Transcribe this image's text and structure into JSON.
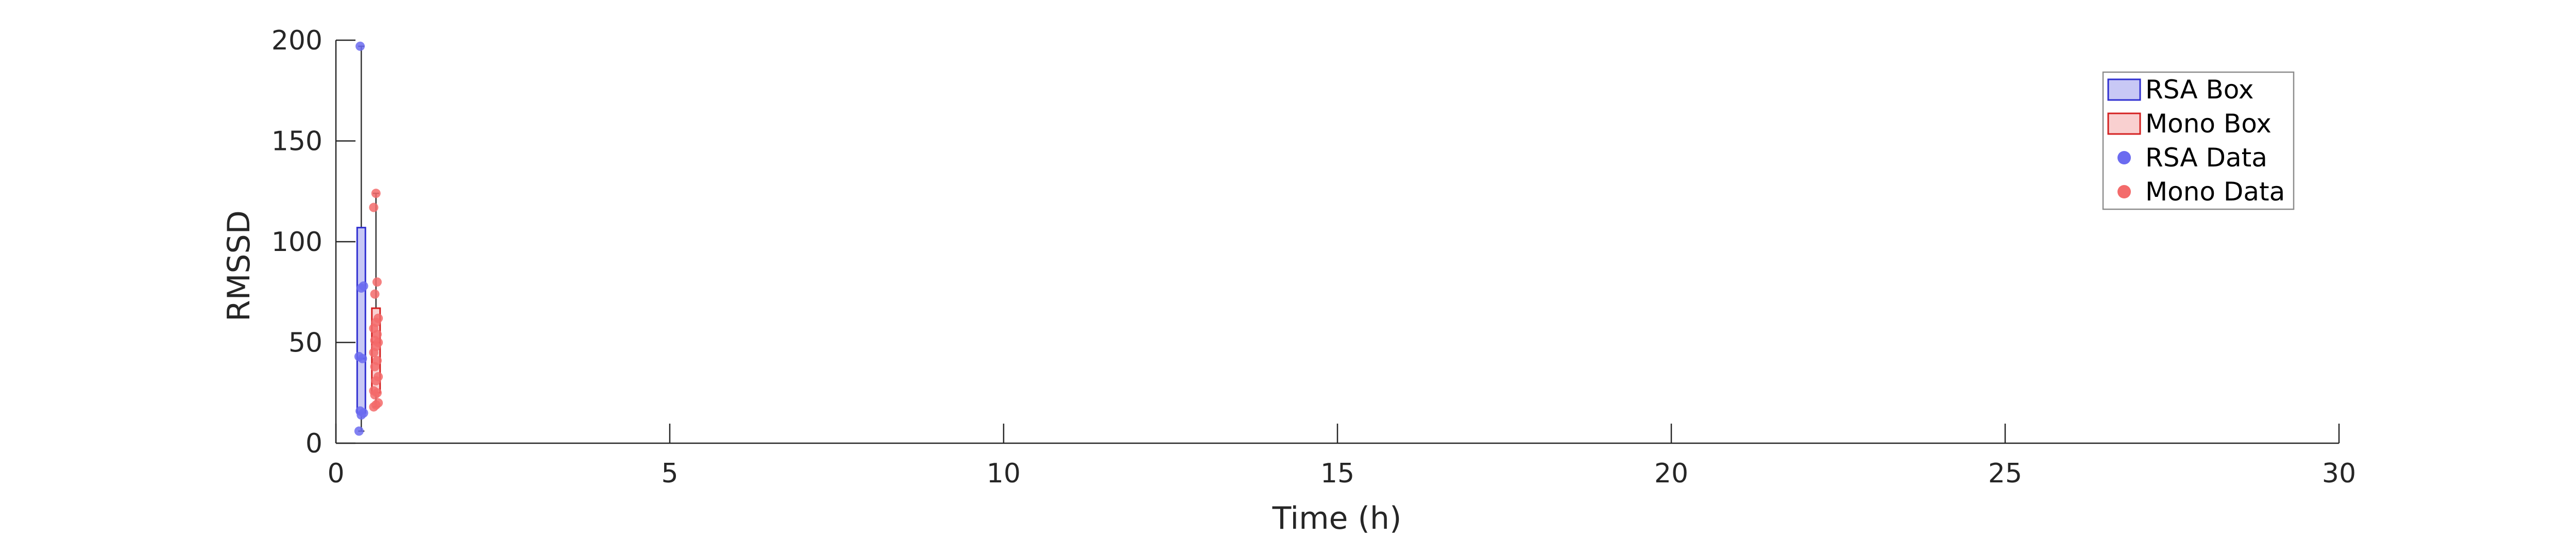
{
  "chart_data": {
    "type": "box",
    "xlabel": "Time (h)",
    "ylabel": "RMSSD",
    "xlim": [
      0,
      30
    ],
    "ylim": [
      0,
      200
    ],
    "xticks": [
      0,
      5,
      10,
      15,
      20,
      25,
      30
    ],
    "yticks": [
      0,
      50,
      100,
      150,
      200
    ],
    "grid": false,
    "legend_position": "top-right",
    "legend": [
      {
        "label": "RSA Box",
        "kind": "box",
        "fill": "#c8c8f5",
        "stroke": "#2f2fd0"
      },
      {
        "label": "Mono Box",
        "kind": "box",
        "fill": "#f9d0d0",
        "stroke": "#d42020"
      },
      {
        "label": "RSA Data",
        "kind": "point",
        "color": "#6b6bf0"
      },
      {
        "label": "Mono Data",
        "kind": "point",
        "color": "#f36b6b"
      }
    ],
    "series": [
      {
        "name": "RSA",
        "x": 0.38,
        "box": {
          "whisker_low": 6,
          "q1": 15,
          "median": 42,
          "q3": 107,
          "whisker_high": 197
        },
        "points": [
          6,
          14,
          15,
          16,
          42,
          43,
          77,
          78,
          197
        ],
        "fill": "#c8c8f5",
        "stroke": "#2f2fd0",
        "point_color": "#6b6bf0"
      },
      {
        "name": "Mono",
        "x": 0.6,
        "box": {
          "whisker_low": 18,
          "q1": 25,
          "median": 50,
          "q3": 67,
          "whisker_high": 124
        },
        "points": [
          18,
          19,
          20,
          24,
          25,
          26,
          31,
          33,
          38,
          41,
          45,
          48,
          50,
          51,
          54,
          57,
          60,
          62,
          74,
          80,
          117,
          124
        ],
        "fill": "#f9d0d0",
        "stroke": "#d42020",
        "point_color": "#f36b6b"
      }
    ]
  }
}
